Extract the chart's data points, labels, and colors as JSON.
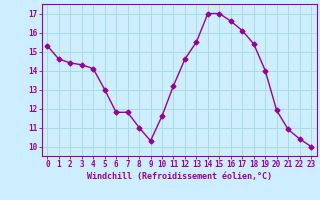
{
  "x": [
    0,
    1,
    2,
    3,
    4,
    5,
    6,
    7,
    8,
    9,
    10,
    11,
    12,
    13,
    14,
    15,
    16,
    17,
    18,
    19,
    20,
    21,
    22,
    23
  ],
  "y": [
    15.3,
    14.6,
    14.4,
    14.3,
    14.1,
    13.0,
    11.8,
    11.8,
    11.0,
    10.3,
    11.6,
    13.2,
    14.6,
    15.5,
    17.0,
    17.0,
    16.6,
    16.1,
    15.4,
    14.0,
    11.9,
    10.9,
    10.4,
    10.0
  ],
  "line_color": "#990099",
  "marker": "D",
  "marker_size": 2.5,
  "bg_color": "#cceeff",
  "grid_color": "#aadddd",
  "xlabel": "Windchill (Refroidissement éolien,°C)",
  "ylabel_ticks": [
    10,
    11,
    12,
    13,
    14,
    15,
    16,
    17
  ],
  "xtick_labels": [
    "0",
    "1",
    "2",
    "3",
    "4",
    "5",
    "6",
    "7",
    "8",
    "9",
    "10",
    "11",
    "12",
    "13",
    "14",
    "15",
    "16",
    "17",
    "18",
    "19",
    "20",
    "21",
    "22",
    "23"
  ],
  "ylim": [
    9.5,
    17.5
  ],
  "xlim": [
    -0.5,
    23.5
  ],
  "xlabel_color": "#990099",
  "tick_color": "#990099",
  "linewidth": 1.0,
  "tick_fontsize": 5.5,
  "xlabel_fontsize": 6.0
}
